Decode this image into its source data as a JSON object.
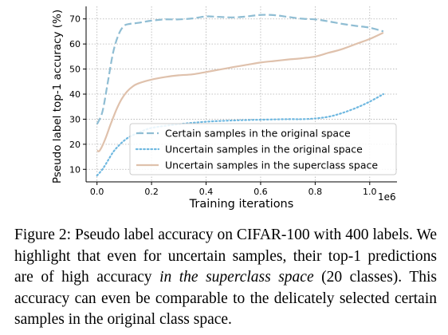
{
  "chart_data": {
    "type": "line",
    "xlabel": "Training iterations",
    "ylabel": "Pseudo label top-1 accuracy (%)",
    "x_offset_label": "1e6",
    "xlim": [
      -0.04,
      1.1
    ],
    "ylim": [
      5,
      75
    ],
    "xticks": [
      0.0,
      0.2,
      0.4,
      0.6,
      0.8,
      1.0
    ],
    "xtick_labels": [
      "0.0",
      "0.2",
      "0.4",
      "0.6",
      "0.8",
      "1.0"
    ],
    "yticks": [
      10,
      20,
      30,
      40,
      50,
      60,
      70
    ],
    "ytick_labels": [
      "10",
      "20",
      "30",
      "40",
      "50",
      "60",
      "70"
    ],
    "grid": true,
    "legend_position": "lower-right",
    "series": [
      {
        "name": "Certain samples in the original space",
        "color": "#8fbdd3",
        "style": "dashed",
        "x": [
          0.0,
          0.02,
          0.04,
          0.06,
          0.08,
          0.1,
          0.12,
          0.15,
          0.2,
          0.25,
          0.3,
          0.35,
          0.4,
          0.45,
          0.5,
          0.55,
          0.6,
          0.65,
          0.7,
          0.75,
          0.8,
          0.85,
          0.9,
          0.95,
          1.0,
          1.05
        ],
        "y": [
          28,
          33,
          45,
          57,
          64,
          67.3,
          68,
          68.4,
          69.3,
          69.8,
          69.8,
          70.2,
          71,
          70.8,
          70.6,
          71,
          71.6,
          71.5,
          70.8,
          70.1,
          69.8,
          69,
          68,
          67.2,
          66.5,
          65
        ]
      },
      {
        "name": "Uncertain samples in the original space",
        "color": "#6fb8e0",
        "style": "dotted",
        "x": [
          0.0,
          0.02,
          0.04,
          0.06,
          0.08,
          0.1,
          0.12,
          0.15,
          0.2,
          0.3,
          0.4,
          0.5,
          0.6,
          0.7,
          0.75,
          0.8,
          0.85,
          0.9,
          0.95,
          1.0,
          1.05
        ],
        "y": [
          7.5,
          10,
          13.5,
          17,
          19.5,
          21.5,
          23,
          24.5,
          26.5,
          28,
          29,
          29.5,
          29.8,
          30,
          30,
          30.3,
          31,
          32.5,
          34.5,
          37,
          40
        ]
      },
      {
        "name": "Uncertain samples in the superclass space",
        "color": "#dfc1ac",
        "style": "solid",
        "x": [
          0.0,
          0.01,
          0.03,
          0.05,
          0.07,
          0.09,
          0.11,
          0.13,
          0.15,
          0.2,
          0.25,
          0.3,
          0.35,
          0.4,
          0.45,
          0.5,
          0.55,
          0.6,
          0.65,
          0.7,
          0.75,
          0.8,
          0.85,
          0.9,
          0.95,
          1.0,
          1.05
        ],
        "y": [
          17.5,
          17.5,
          22,
          28,
          33.5,
          38,
          41,
          43,
          44.2,
          45.8,
          46.8,
          47.5,
          47.9,
          48.8,
          49.8,
          50.8,
          51.7,
          52.6,
          53.2,
          53.8,
          54.3,
          55,
          56.5,
          58,
          60,
          62,
          64.5
        ]
      }
    ]
  },
  "caption": {
    "prefix": "Figure 2: Pseudo label accuracy on CIFAR-100 with 400 labels. We highlight that even for uncertain samples, their top-1 predictions are of high accuracy ",
    "italic": "in the superclass space",
    "suffix": " (20 classes). This accuracy can even be comparable to the delicately selected certain samples in the original class space."
  }
}
